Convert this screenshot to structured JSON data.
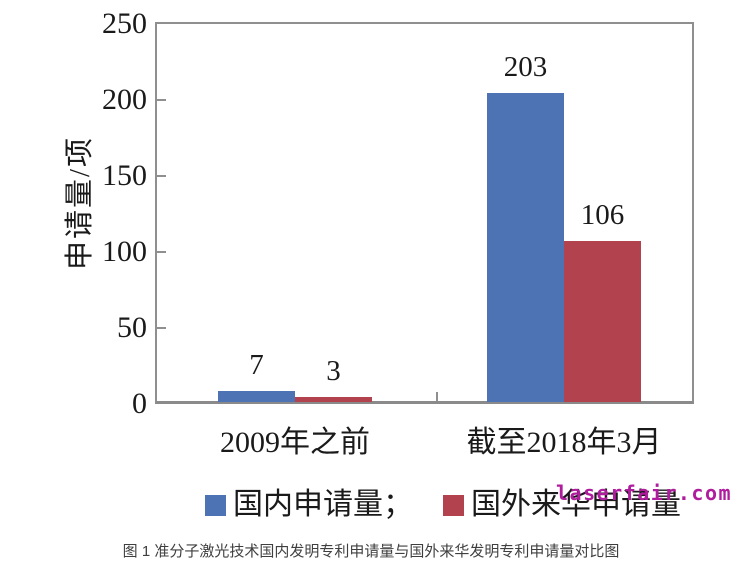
{
  "figure": {
    "caption": "图 1 准分子激光技术国内发明专利申请量与国外来华发明专利申请量对比图",
    "watermark": "laserfair.com"
  },
  "chart_data": {
    "type": "bar",
    "title": "",
    "xlabel": "",
    "ylabel": "申请量/项",
    "categories": [
      "2009年之前",
      "截至2018年3月"
    ],
    "series": [
      {
        "name": "国内申请量",
        "color": "#4e73b4",
        "values": [
          7,
          203
        ]
      },
      {
        "name": "国外来华申请量",
        "color": "#b2434e",
        "values": [
          3,
          106
        ]
      }
    ],
    "data_labels": [
      [
        "7",
        "203"
      ],
      [
        "3",
        "106"
      ]
    ],
    "ylim": [
      0,
      250
    ],
    "yticks": [
      0,
      50,
      100,
      150,
      200,
      250
    ],
    "grid": false,
    "legend_position": "bottom",
    "legend_labels": [
      "国内申请量；",
      "国外来华申请量"
    ],
    "colors": {
      "axis": "#8f8f8f",
      "text": "#1a1a1a",
      "watermark": "#b01c9e",
      "caption": "#3f3f3f"
    }
  }
}
